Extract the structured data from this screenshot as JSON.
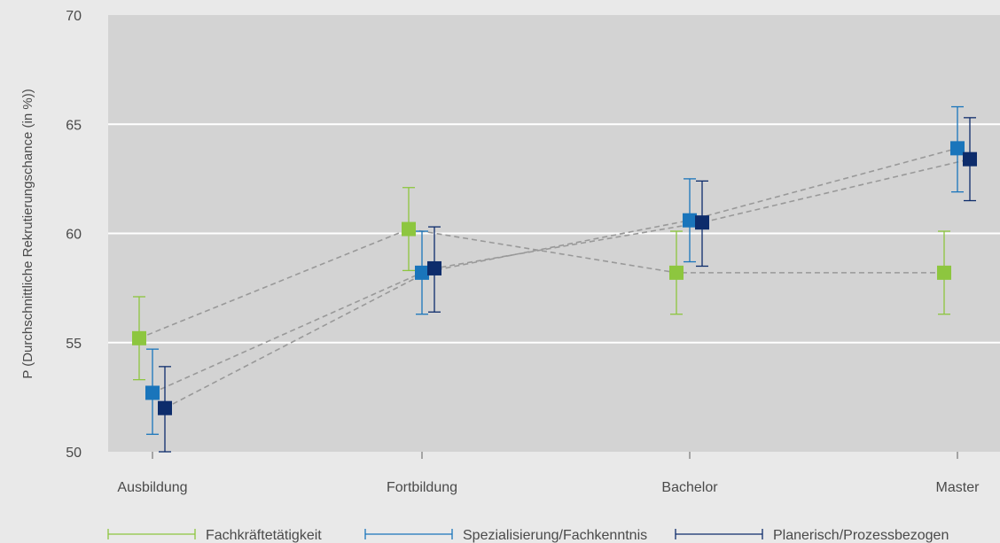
{
  "chart_data": {
    "type": "scatter",
    "title": "",
    "xlabel": "",
    "ylabel": "P (Durchschnittliche Rekrutierungschance (in %))",
    "ylim": [
      50,
      70
    ],
    "yticks": [
      50,
      55,
      60,
      65,
      70
    ],
    "grid": "horizontal",
    "legend_position": "bottom",
    "categories": [
      "Ausbildung",
      "Fortbildung",
      "Bachelor",
      "Master"
    ],
    "connector_style": "dashed",
    "series": [
      {
        "name": "Fachkräftetätigkeit",
        "color": "#8dc63f",
        "values": [
          55.2,
          60.2,
          58.2,
          58.2
        ],
        "lower": [
          53.3,
          58.3,
          56.3,
          56.3
        ],
        "upper": [
          57.1,
          62.1,
          60.1,
          60.1
        ]
      },
      {
        "name": "Spezialisierung/Fachkenntnis",
        "color": "#1a75bb",
        "values": [
          52.7,
          58.2,
          60.6,
          63.9
        ],
        "lower": [
          50.8,
          56.3,
          58.7,
          61.9
        ],
        "upper": [
          54.7,
          60.1,
          62.5,
          65.8
        ]
      },
      {
        "name": "Planerisch/Prozessbezogen",
        "color": "#0d2c6b",
        "values": [
          52.0,
          58.4,
          60.5,
          63.4
        ],
        "lower": [
          50.0,
          56.4,
          58.5,
          61.5
        ],
        "upper": [
          53.9,
          60.3,
          62.4,
          65.3
        ]
      }
    ]
  }
}
